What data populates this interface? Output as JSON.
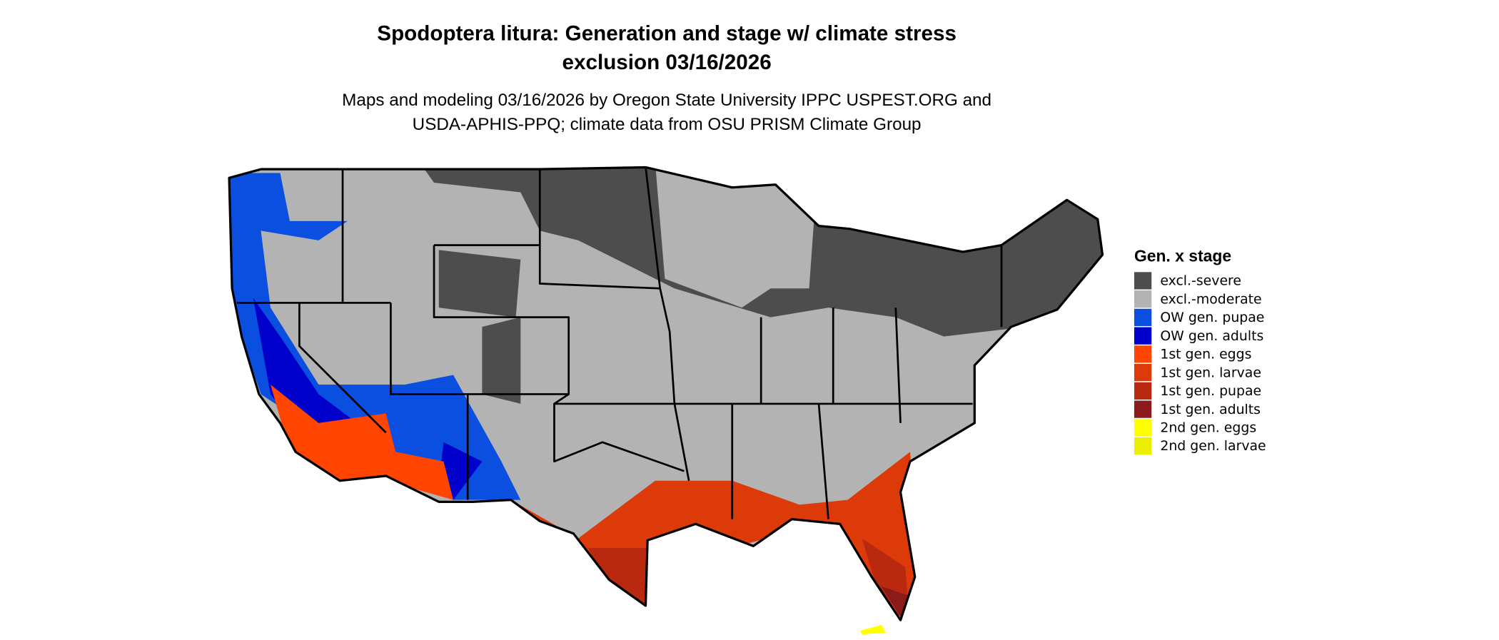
{
  "title": {
    "line1": "Spodoptera litura: Generation and stage w/ climate stress",
    "line2": "exclusion 03/16/2026"
  },
  "subtitle": {
    "line1": "Maps and modeling 03/16/2026 by Oregon State University IPPC USPEST.ORG and",
    "line2": "USDA-APHIS-PPQ; climate data from OSU PRISM Climate Group"
  },
  "legend": {
    "title": "Gen. x stage",
    "items": [
      {
        "label": "excl.-severe",
        "color": "#4d4d4d"
      },
      {
        "label": "excl.-moderate",
        "color": "#b3b3b3"
      },
      {
        "label": "OW gen. pupae",
        "color": "#0a4fe0"
      },
      {
        "label": "OW gen. adults",
        "color": "#0000cc"
      },
      {
        "label": "1st gen. eggs",
        "color": "#ff4500"
      },
      {
        "label": "1st gen. larvae",
        "color": "#dd3a0a"
      },
      {
        "label": "1st gen. pupae",
        "color": "#b8290f"
      },
      {
        "label": "1st gen. adults",
        "color": "#8b1a1a"
      },
      {
        "label": "2nd gen. eggs",
        "color": "#ffff00"
      },
      {
        "label": "2nd gen. larvae",
        "color": "#eeee00"
      }
    ]
  }
}
